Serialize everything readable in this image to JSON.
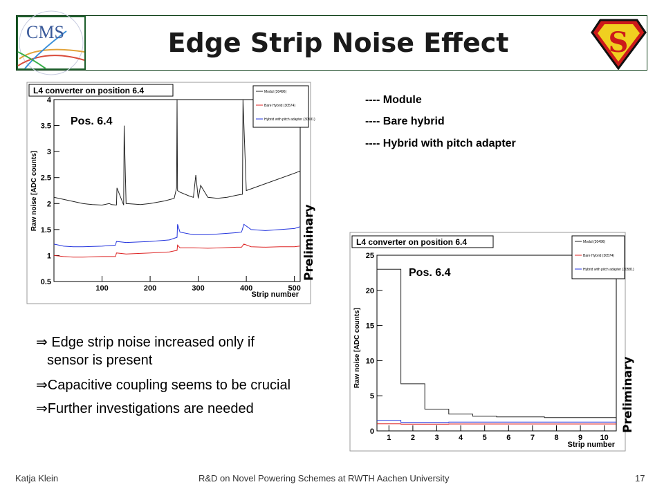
{
  "slide": {
    "title": "Edge Strip Noise Effect",
    "legend": [
      {
        "text": "---- Module",
        "color": "#000000"
      },
      {
        "text": "---- Bare hybrid",
        "color": "#d01010"
      },
      {
        "text": "---- Hybrid with pitch adapter",
        "color": "#1a2bd0"
      }
    ],
    "bullets": [
      {
        "arrow": "⇒",
        "line1": "Edge strip noise increased only if",
        "line2": "sensor is present"
      },
      {
        "arrow": "⇒",
        "line1": "Capacitive coupling seems to be crucial"
      },
      {
        "arrow": "⇒",
        "line1": "Further investigations are needed"
      }
    ],
    "preliminary": "Preliminary",
    "footer": {
      "author": "Katja Klein",
      "center": "R&D on Novel Powering Schemes at RWTH Aachen University",
      "page": "17"
    },
    "logo": {
      "cms_text": "CMS",
      "superman": "S"
    }
  },
  "chart_data": [
    {
      "type": "line",
      "title": "L4 converter on position 6.4",
      "annotation": "Pos. 6.4",
      "xlabel": "Strip number",
      "ylabel": "Raw noise [ADC counts]",
      "xlim": [
        0,
        512
      ],
      "ylim": [
        0.5,
        4
      ],
      "xticks": [
        100,
        200,
        300,
        400,
        500
      ],
      "yticks": [
        0.5,
        1,
        1.5,
        2,
        2.5,
        3,
        3.5,
        4
      ],
      "legend": [
        "Modul (30496)",
        "Bare Hybrid (30574)",
        "Hybrid with pitch adapter (30581)"
      ],
      "series": [
        {
          "name": "Modul (30496)",
          "color": "#222222",
          "x": [
            0,
            20,
            40,
            60,
            80,
            100,
            115,
            120,
            130,
            131,
            145,
            146,
            150,
            180,
            200,
            230,
            250,
            255,
            256,
            257,
            262,
            280,
            290,
            295,
            300,
            305,
            320,
            340,
            360,
            380,
            392,
            393,
            400,
            430,
            460,
            490,
            505,
            510,
            512
          ],
          "y": [
            2.12,
            2.08,
            2.04,
            2.0,
            1.98,
            1.97,
            2.0,
            1.98,
            1.97,
            2.3,
            1.97,
            3.5,
            2.0,
            1.98,
            2.0,
            2.05,
            2.1,
            2.3,
            4.0,
            2.25,
            2.22,
            2.15,
            2.12,
            2.55,
            2.1,
            2.35,
            2.12,
            2.1,
            2.12,
            2.16,
            2.18,
            4.0,
            2.25,
            2.35,
            2.45,
            2.55,
            2.6,
            2.62,
            2.6
          ]
        },
        {
          "name": "Hybrid with pitch adapter (30581)",
          "color": "#2233dd",
          "x": [
            0,
            20,
            40,
            60,
            100,
            128,
            130,
            150,
            200,
            240,
            256,
            257,
            262,
            290,
            320,
            350,
            380,
            390,
            395,
            410,
            440,
            470,
            500,
            510,
            512
          ],
          "y": [
            1.22,
            1.18,
            1.17,
            1.17,
            1.18,
            1.2,
            1.27,
            1.25,
            1.27,
            1.3,
            1.35,
            1.6,
            1.45,
            1.4,
            1.4,
            1.42,
            1.44,
            1.45,
            1.6,
            1.5,
            1.48,
            1.5,
            1.52,
            1.55,
            1.55
          ]
        },
        {
          "name": "Bare Hybrid (30574)",
          "color": "#dd2222",
          "x": [
            0,
            20,
            40,
            60,
            100,
            128,
            130,
            150,
            200,
            240,
            256,
            257,
            262,
            290,
            320,
            350,
            380,
            390,
            395,
            410,
            440,
            470,
            500,
            510,
            512
          ],
          "y": [
            1.0,
            0.98,
            0.97,
            0.97,
            0.98,
            0.98,
            1.05,
            1.03,
            1.05,
            1.07,
            1.1,
            1.2,
            1.15,
            1.15,
            1.14,
            1.15,
            1.16,
            1.16,
            1.22,
            1.17,
            1.16,
            1.17,
            1.17,
            1.18,
            1.18
          ]
        }
      ]
    },
    {
      "type": "line",
      "title": "L4 converter on position 6.4",
      "annotation": "Pos. 6.4",
      "xlabel": "Strip number",
      "ylabel": "Raw noise [ADC counts]",
      "xlim": [
        0.5,
        10.5
      ],
      "ylim": [
        0,
        25
      ],
      "xticks": [
        1,
        2,
        3,
        4,
        5,
        6,
        7,
        8,
        9,
        10
      ],
      "yticks": [
        0,
        5,
        10,
        15,
        20,
        25
      ],
      "legend": [
        "Modul (30496)",
        "Bare Hybrid (30574)",
        "Hybrid with pitch adapter (30581)"
      ],
      "series": [
        {
          "name": "Modul (30496)",
          "color": "#222222",
          "step": true,
          "x": [
            1,
            2,
            3,
            4,
            5,
            6,
            7,
            8,
            9,
            10
          ],
          "y": [
            23,
            6.7,
            3.1,
            2.4,
            2.1,
            2.0,
            2.0,
            1.9,
            1.9,
            1.9
          ]
        },
        {
          "name": "Hybrid with pitch adapter (30581)",
          "color": "#2233dd",
          "step": true,
          "x": [
            1,
            2,
            3,
            4,
            5,
            6,
            7,
            8,
            9,
            10
          ],
          "y": [
            1.5,
            1.2,
            1.2,
            1.25,
            1.25,
            1.25,
            1.25,
            1.25,
            1.25,
            1.25
          ]
        },
        {
          "name": "Bare Hybrid (30574)",
          "color": "#dd2222",
          "step": true,
          "x": [
            1,
            2,
            3,
            4,
            5,
            6,
            7,
            8,
            9,
            10
          ],
          "y": [
            1.0,
            0.95,
            0.95,
            0.98,
            0.98,
            0.98,
            0.98,
            0.98,
            0.98,
            0.98
          ]
        }
      ]
    }
  ]
}
